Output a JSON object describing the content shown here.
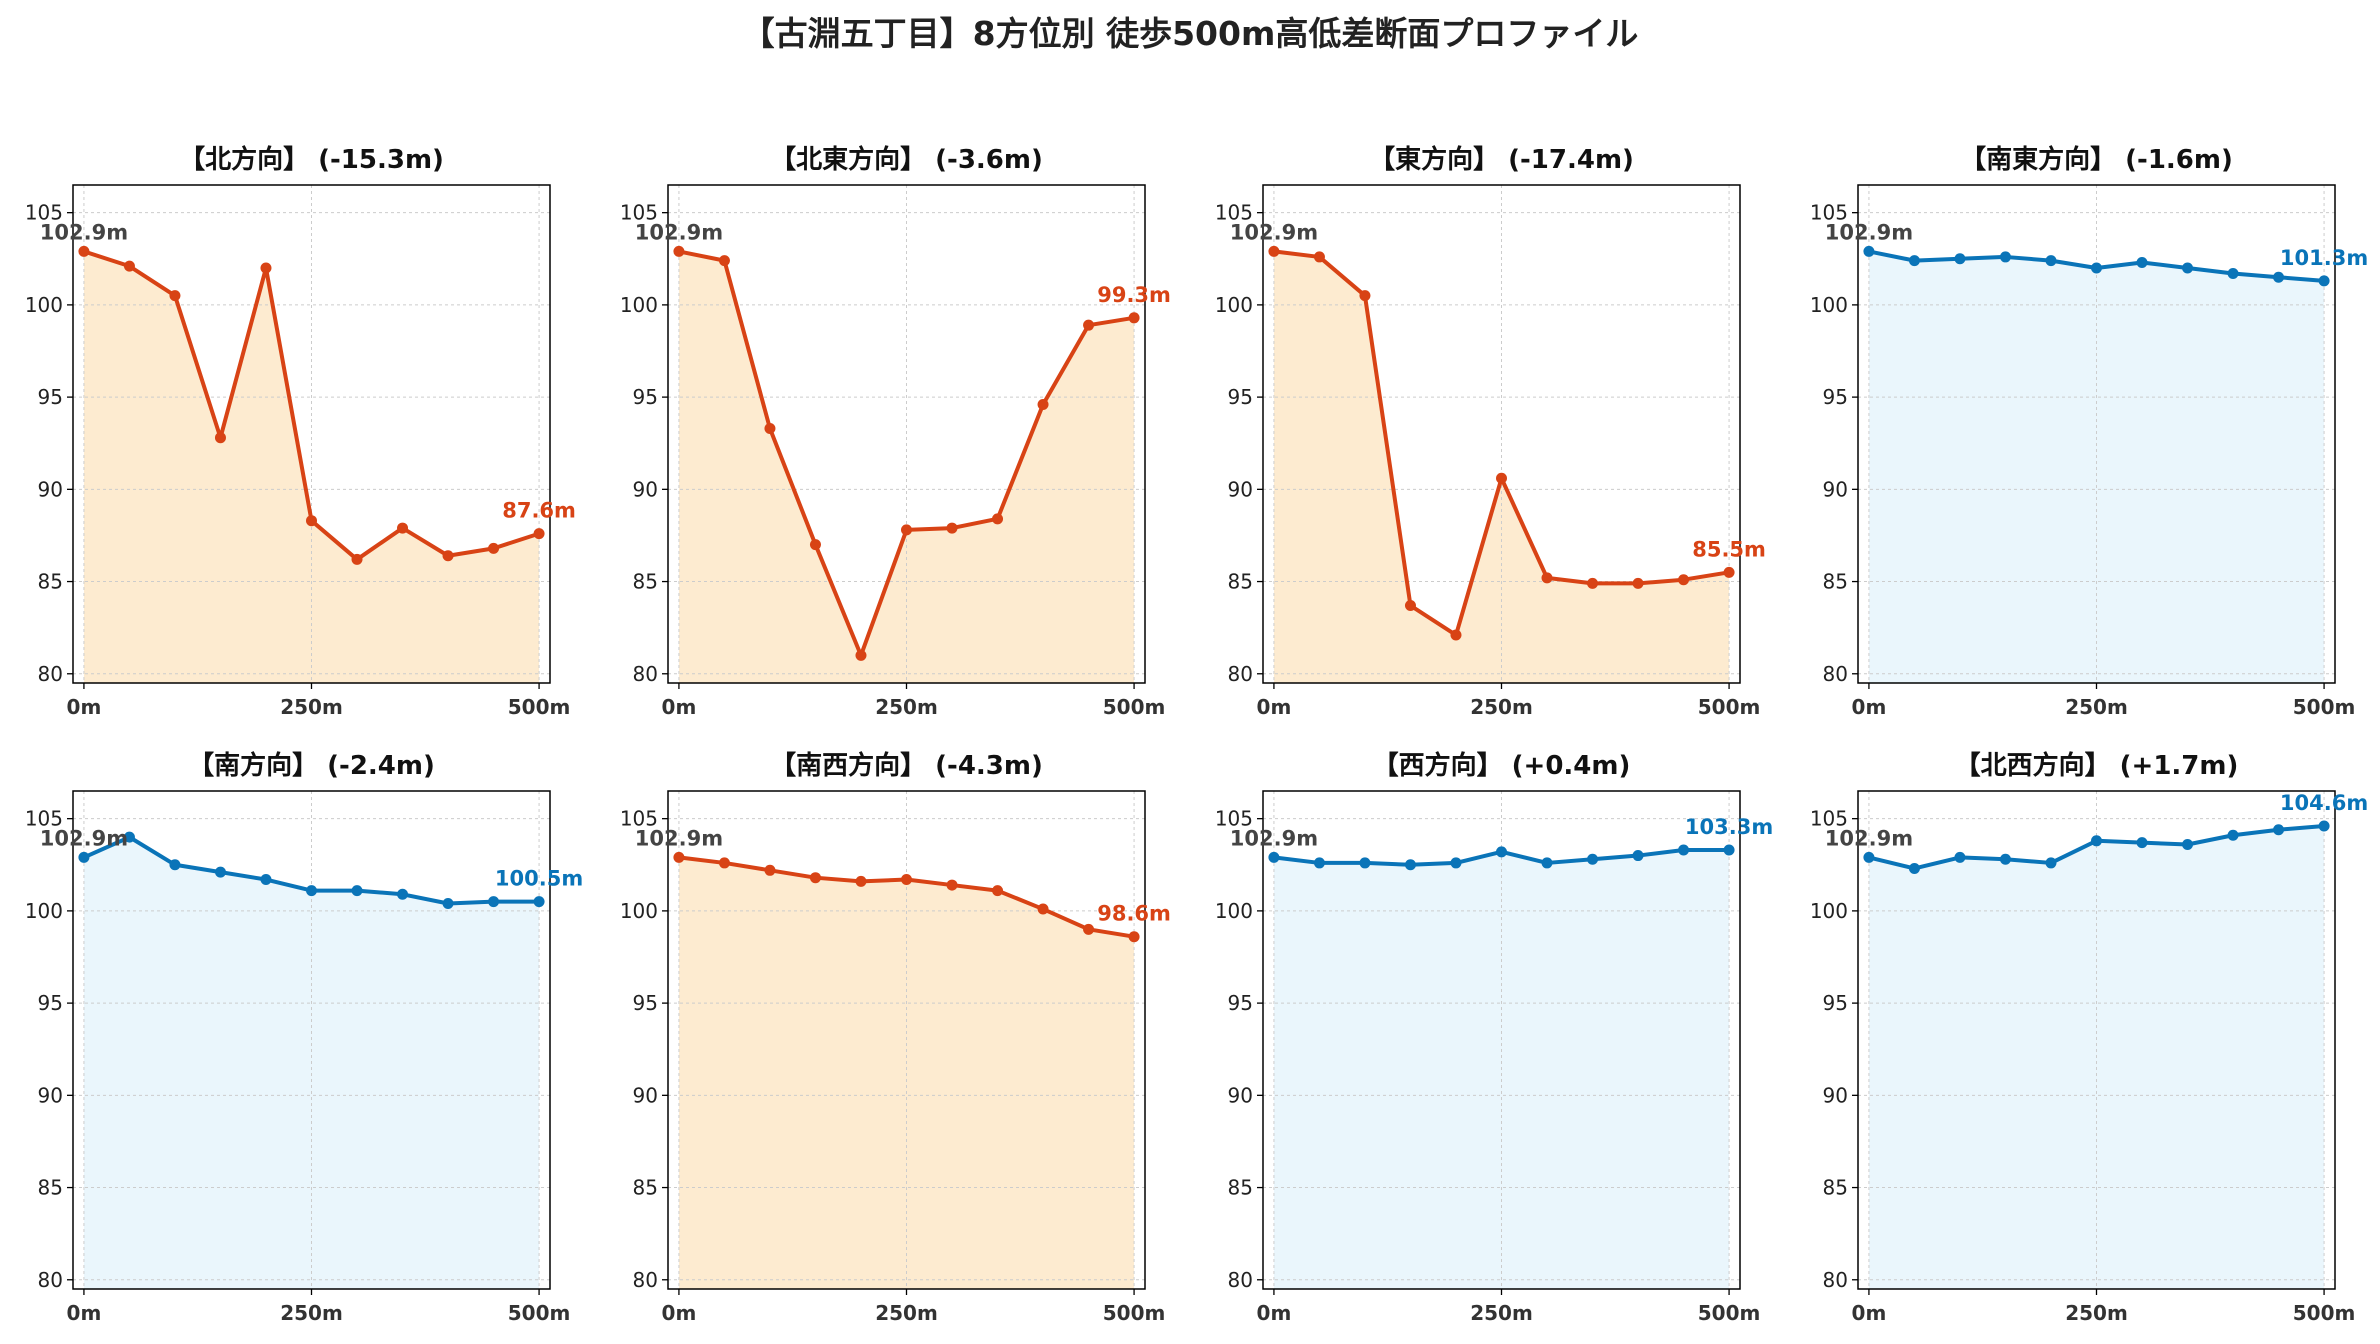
{
  "figure": {
    "title": "【古淵五丁目】8方位別 徒歩500m高低差断面プロファイル"
  },
  "colors": {
    "downhill_line": "#d84315",
    "downhill_fill": "#fdebd0",
    "uphill_line": "#0a74b8",
    "uphill_fill": "#eaf6fc",
    "start_label": "#444444",
    "grid": "#cccccc",
    "axis": "#000000"
  },
  "chart_data": [
    {
      "type": "area",
      "title": "【北方向】 (-15.3m)",
      "trend": "down",
      "x": [
        0,
        50,
        100,
        150,
        200,
        250,
        300,
        350,
        400,
        450,
        500
      ],
      "y": [
        102.9,
        102.1,
        100.5,
        92.8,
        102.0,
        88.3,
        86.2,
        87.9,
        86.4,
        86.8,
        87.6
      ],
      "start_label": "102.9m",
      "end_label": "87.6m",
      "xticks": [
        "0m",
        "250m",
        "500m"
      ],
      "yticks": [
        "80",
        "85",
        "90",
        "95",
        "100",
        "105"
      ],
      "ylim": [
        79.5,
        106.5
      ],
      "xlim": [
        -12,
        512
      ],
      "grid": true
    },
    {
      "type": "area",
      "title": "【北東方向】 (-3.6m)",
      "trend": "down",
      "x": [
        0,
        50,
        100,
        150,
        200,
        250,
        300,
        350,
        400,
        450,
        500
      ],
      "y": [
        102.9,
        102.4,
        93.3,
        87.0,
        81.0,
        87.8,
        87.9,
        88.4,
        94.6,
        98.9,
        99.3
      ],
      "start_label": "102.9m",
      "end_label": "99.3m",
      "xticks": [
        "0m",
        "250m",
        "500m"
      ],
      "yticks": [
        "80",
        "85",
        "90",
        "95",
        "100",
        "105"
      ],
      "ylim": [
        79.5,
        106.5
      ],
      "xlim": [
        -12,
        512
      ],
      "grid": true
    },
    {
      "type": "area",
      "title": "【東方向】 (-17.4m)",
      "trend": "down",
      "x": [
        0,
        50,
        100,
        150,
        200,
        250,
        300,
        350,
        400,
        450,
        500
      ],
      "y": [
        102.9,
        102.6,
        100.5,
        83.7,
        82.1,
        90.6,
        85.2,
        84.9,
        84.9,
        85.1,
        85.5
      ],
      "start_label": "102.9m",
      "end_label": "85.5m",
      "xticks": [
        "0m",
        "250m",
        "500m"
      ],
      "yticks": [
        "80",
        "85",
        "90",
        "95",
        "100",
        "105"
      ],
      "ylim": [
        79.5,
        106.5
      ],
      "xlim": [
        -12,
        512
      ],
      "grid": true
    },
    {
      "type": "area",
      "title": "【南東方向】 (-1.6m)",
      "trend": "up",
      "x": [
        0,
        50,
        100,
        150,
        200,
        250,
        300,
        350,
        400,
        450,
        500
      ],
      "y": [
        102.9,
        102.4,
        102.5,
        102.6,
        102.4,
        102.0,
        102.3,
        102.0,
        101.7,
        101.5,
        101.3
      ],
      "start_label": "102.9m",
      "end_label": "101.3m",
      "xticks": [
        "0m",
        "250m",
        "500m"
      ],
      "yticks": [
        "80",
        "85",
        "90",
        "95",
        "100",
        "105"
      ],
      "ylim": [
        79.5,
        106.5
      ],
      "xlim": [
        -12,
        512
      ],
      "grid": true
    },
    {
      "type": "area",
      "title": "【南方向】 (-2.4m)",
      "trend": "up",
      "x": [
        0,
        50,
        100,
        150,
        200,
        250,
        300,
        350,
        400,
        450,
        500
      ],
      "y": [
        102.9,
        104.0,
        102.5,
        102.1,
        101.7,
        101.1,
        101.1,
        100.9,
        100.4,
        100.5,
        100.5
      ],
      "start_label": "102.9m",
      "end_label": "100.5m",
      "xticks": [
        "0m",
        "250m",
        "500m"
      ],
      "yticks": [
        "80",
        "85",
        "90",
        "95",
        "100",
        "105"
      ],
      "ylim": [
        79.5,
        106.5
      ],
      "xlim": [
        -12,
        512
      ],
      "grid": true
    },
    {
      "type": "area",
      "title": "【南西方向】 (-4.3m)",
      "trend": "down",
      "x": [
        0,
        50,
        100,
        150,
        200,
        250,
        300,
        350,
        400,
        450,
        500
      ],
      "y": [
        102.9,
        102.6,
        102.2,
        101.8,
        101.6,
        101.7,
        101.4,
        101.1,
        100.1,
        99.0,
        98.6
      ],
      "start_label": "102.9m",
      "end_label": "98.6m",
      "xticks": [
        "0m",
        "250m",
        "500m"
      ],
      "yticks": [
        "80",
        "85",
        "90",
        "95",
        "100",
        "105"
      ],
      "ylim": [
        79.5,
        106.5
      ],
      "xlim": [
        -12,
        512
      ],
      "grid": true
    },
    {
      "type": "area",
      "title": "【西方向】 (+0.4m)",
      "trend": "up",
      "x": [
        0,
        50,
        100,
        150,
        200,
        250,
        300,
        350,
        400,
        450,
        500
      ],
      "y": [
        102.9,
        102.6,
        102.6,
        102.5,
        102.6,
        103.2,
        102.6,
        102.8,
        103.0,
        103.3,
        103.3
      ],
      "start_label": "102.9m",
      "end_label": "103.3m",
      "xticks": [
        "0m",
        "250m",
        "500m"
      ],
      "yticks": [
        "80",
        "85",
        "90",
        "95",
        "100",
        "105"
      ],
      "ylim": [
        79.5,
        106.5
      ],
      "xlim": [
        -12,
        512
      ],
      "grid": true
    },
    {
      "type": "area",
      "title": "【北西方向】 (+1.7m)",
      "trend": "up",
      "x": [
        0,
        50,
        100,
        150,
        200,
        250,
        300,
        350,
        400,
        450,
        500
      ],
      "y": [
        102.9,
        102.3,
        102.9,
        102.8,
        102.6,
        103.8,
        103.7,
        103.6,
        104.1,
        104.4,
        104.6
      ],
      "start_label": "102.9m",
      "end_label": "104.6m",
      "xticks": [
        "0m",
        "250m",
        "500m"
      ],
      "yticks": [
        "80",
        "85",
        "90",
        "95",
        "100",
        "105"
      ],
      "ylim": [
        79.5,
        106.5
      ],
      "xlim": [
        -12,
        512
      ],
      "grid": true
    }
  ]
}
